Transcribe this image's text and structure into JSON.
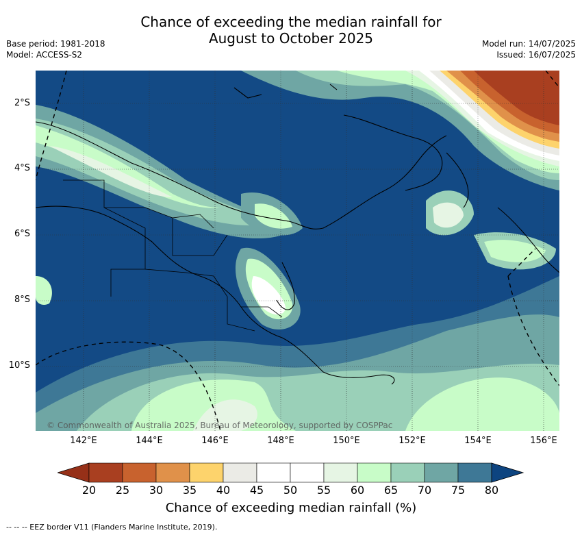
{
  "title": {
    "line1": "Chance of exceeding the median rainfall for",
    "line2": "August to October 2025"
  },
  "meta_left": {
    "base_period": "Base period: 1981-2018",
    "model": "Model: ACCESS-S2"
  },
  "meta_right": {
    "model_run": "Model run: 14/07/2025",
    "issued": "Issued: 16/07/2025"
  },
  "map": {
    "lat_labels": [
      "2°S",
      "4°S",
      "6°S",
      "8°S",
      "10°S"
    ],
    "lon_labels": [
      "142°E",
      "144°E",
      "146°E",
      "148°E",
      "150°E",
      "152°E",
      "154°E",
      "156°E"
    ],
    "copyright": "© Commonwealth of Australia 2025, Bureau of Meteorology, supported by COSPPac"
  },
  "colorbar": {
    "ticks": [
      "20",
      "25",
      "30",
      "35",
      "40",
      "45",
      "50",
      "55",
      "60",
      "65",
      "70",
      "75",
      "80"
    ],
    "label": "Chance of exceeding median rainfall (%)",
    "colors": [
      "#a93f20",
      "#c8622e",
      "#e0914a",
      "#fdd36c",
      "#ebebe6",
      "#ffffff",
      "#ffffff",
      "#e6f5e4",
      "#c8fcc8",
      "#9ad0b8",
      "#6fa6a4",
      "#3e7896",
      "#134a85"
    ],
    "under_color": "#963018",
    "over_color": "#0d4480"
  },
  "footnote": "--  --  -- EEZ border V11 (Flanders Marine Institute, 2019)."
}
